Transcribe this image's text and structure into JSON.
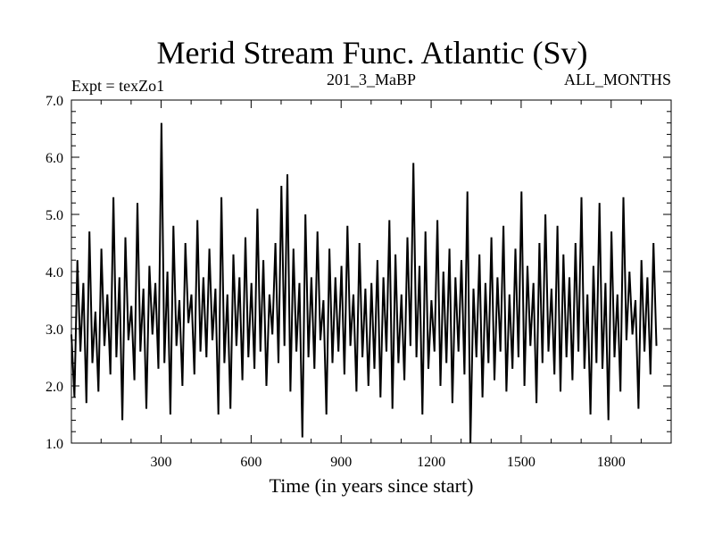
{
  "chart_data": {
    "type": "line",
    "title": "Merid Stream Func. Atlantic (Sv)",
    "subtitle_left": "Expt = texZo1",
    "subtitle_center": "201_3_MaBP",
    "subtitle_right": "ALL_MONTHS",
    "xlabel": "Time (in years since start)",
    "ylabel": "",
    "xlim": [
      1,
      2000
    ],
    "ylim": [
      1.0,
      7.0
    ],
    "x_ticks": [
      300,
      600,
      900,
      1200,
      1500,
      1800
    ],
    "y_ticks": [
      1.0,
      2.0,
      3.0,
      4.0,
      5.0,
      6.0,
      7.0
    ],
    "x_tick_labels": [
      "300",
      "600",
      "900",
      "1200",
      "1500",
      "1800"
    ],
    "y_tick_labels": [
      "1.0",
      "2.0",
      "3.0",
      "4.0",
      "5.0",
      "6.0",
      "7.0"
    ],
    "grid": false,
    "line_color": "#000000",
    "series": [
      {
        "x_start": 1,
        "x_step": 10,
        "values": [
          2.9,
          1.8,
          4.2,
          2.6,
          3.8,
          1.7,
          4.7,
          2.4,
          3.3,
          1.9,
          4.4,
          2.7,
          3.6,
          2.2,
          5.3,
          2.5,
          3.9,
          1.4,
          4.6,
          2.8,
          3.4,
          2.1,
          5.2,
          2.6,
          3.7,
          1.6,
          4.1,
          2.9,
          3.8,
          2.3,
          6.6,
          2.4,
          4.0,
          1.5,
          4.8,
          2.7,
          3.5,
          2.0,
          4.5,
          3.1,
          3.6,
          2.2,
          4.9,
          2.6,
          3.9,
          2.5,
          4.4,
          2.8,
          3.7,
          1.5,
          5.3,
          2.4,
          3.6,
          1.6,
          4.3,
          2.7,
          3.9,
          2.1,
          4.6,
          2.5,
          3.8,
          2.3,
          5.1,
          2.6,
          4.2,
          2.0,
          3.6,
          2.9,
          4.5,
          2.4,
          5.5,
          2.7,
          5.7,
          1.9,
          4.4,
          2.6,
          3.8,
          1.1,
          5.0,
          2.5,
          3.9,
          2.3,
          4.7,
          2.8,
          3.5,
          1.5,
          4.4,
          2.4,
          3.9,
          2.6,
          4.1,
          2.2,
          4.8,
          2.7,
          3.6,
          1.9,
          4.5,
          2.5,
          3.7,
          2.0,
          3.8,
          2.3,
          4.2,
          1.8,
          3.9,
          2.6,
          4.9,
          1.6,
          4.3,
          2.4,
          3.6,
          2.1,
          4.6,
          2.7,
          5.9,
          2.5,
          4.1,
          1.5,
          4.7,
          2.3,
          3.5,
          2.6,
          4.9,
          2.0,
          4.0,
          2.4,
          4.4,
          1.7,
          3.9,
          2.6,
          4.2,
          2.2,
          5.4,
          1.0,
          3.7,
          2.5,
          4.3,
          1.8,
          3.8,
          2.4,
          4.6,
          2.1,
          3.9,
          2.6,
          4.8,
          1.9,
          3.6,
          2.3,
          4.4,
          2.5,
          5.4,
          2.0,
          4.1,
          2.7,
          3.8,
          1.7,
          4.5,
          2.4,
          5.0,
          2.6,
          3.7,
          2.2,
          4.8,
          1.9,
          4.3,
          2.5,
          3.9,
          2.1,
          4.5,
          2.6,
          5.3,
          2.3,
          3.6,
          1.5,
          4.1,
          2.4,
          5.2,
          2.3,
          3.8,
          1.4,
          4.7,
          2.5,
          3.6,
          1.9,
          5.3,
          2.8,
          4.0,
          2.9,
          3.5,
          1.6,
          4.2,
          2.6,
          3.9,
          2.2,
          4.5,
          2.7
        ]
      }
    ]
  }
}
